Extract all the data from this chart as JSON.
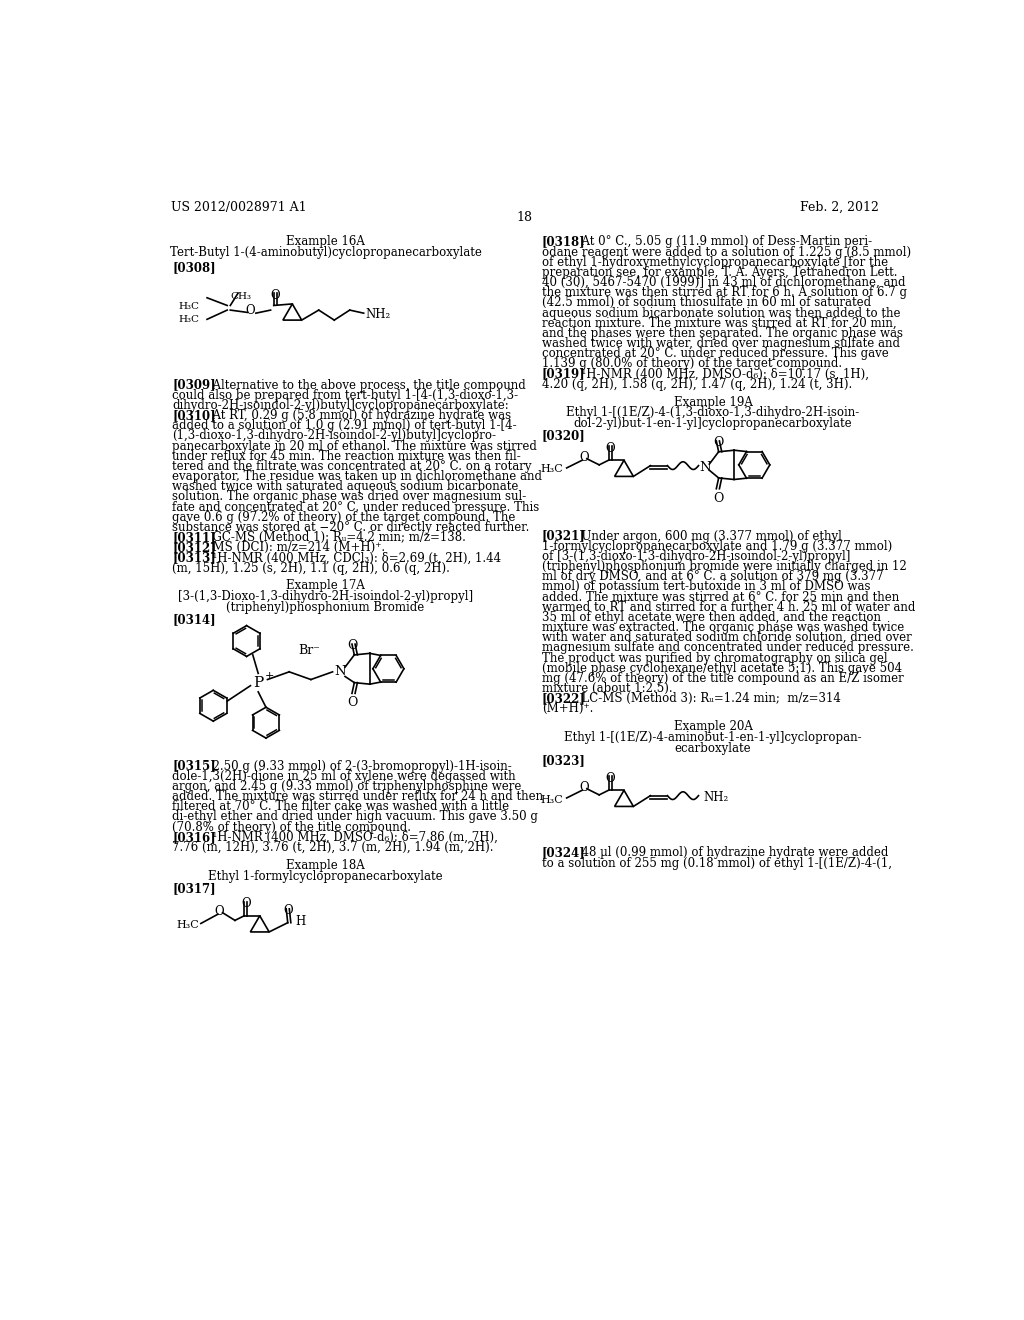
{
  "background_color": "#ffffff",
  "header_left": "US 2012/0028971 A1",
  "header_right": "Feb. 2, 2012",
  "page_number": "18"
}
